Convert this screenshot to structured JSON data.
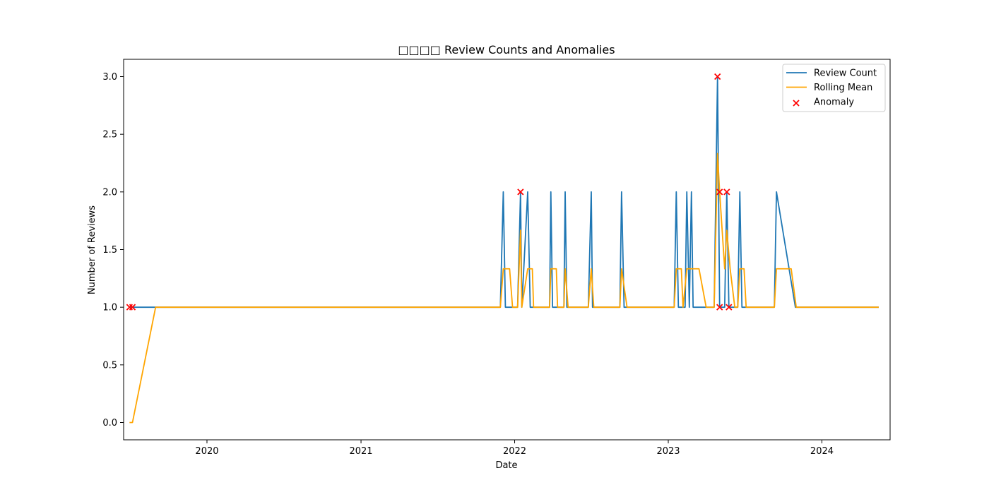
{
  "chart_data": {
    "type": "line",
    "title": "□□□□ Review Counts and Anomalies",
    "xlabel": "Date",
    "ylabel": "Number of Reviews",
    "xlim": [
      "2019-06-17",
      "2024-06-11"
    ],
    "ylim": [
      -0.15,
      3.15
    ],
    "x_ticks": [
      "2020-01-01",
      "2021-01-01",
      "2022-01-01",
      "2023-01-01",
      "2024-01-01"
    ],
    "x_tick_labels": [
      "2020",
      "2021",
      "2022",
      "2023",
      "2024"
    ],
    "y_ticks": [
      0.0,
      0.5,
      1.0,
      1.5,
      2.0,
      2.5,
      3.0
    ],
    "y_tick_labels": [
      "0.0",
      "0.5",
      "1.0",
      "1.5",
      "2.0",
      "2.5",
      "3.0"
    ],
    "grid": false,
    "legend_position": "top-right",
    "series": [
      {
        "name": "Review Count",
        "kind": "line",
        "color": "#1f77b4",
        "points": [
          [
            "2019-07-01",
            1
          ],
          [
            "2019-07-08",
            1
          ],
          [
            "2019-09-01",
            1
          ],
          [
            "2021-11-28",
            1
          ],
          [
            "2021-12-05",
            2
          ],
          [
            "2021-12-10",
            1
          ],
          [
            "2022-01-08",
            1
          ],
          [
            "2022-01-15",
            2
          ],
          [
            "2022-01-18",
            1
          ],
          [
            "2022-02-01",
            2
          ],
          [
            "2022-02-07",
            1
          ],
          [
            "2022-03-25",
            1
          ],
          [
            "2022-03-28",
            2
          ],
          [
            "2022-04-01",
            1
          ],
          [
            "2022-04-28",
            1
          ],
          [
            "2022-05-01",
            2
          ],
          [
            "2022-05-05",
            1
          ],
          [
            "2022-06-25",
            1
          ],
          [
            "2022-07-02",
            2
          ],
          [
            "2022-07-05",
            1
          ],
          [
            "2022-09-08",
            1
          ],
          [
            "2022-09-12",
            2
          ],
          [
            "2022-09-18",
            1
          ],
          [
            "2023-01-15",
            1
          ],
          [
            "2023-01-20",
            2
          ],
          [
            "2023-01-25",
            1
          ],
          [
            "2023-02-10",
            1
          ],
          [
            "2023-02-14",
            2
          ],
          [
            "2023-02-20",
            1
          ],
          [
            "2023-02-25",
            2
          ],
          [
            "2023-03-01",
            1
          ],
          [
            "2023-04-20",
            1
          ],
          [
            "2023-04-28",
            3
          ],
          [
            "2023-05-03",
            1
          ],
          [
            "2023-05-15",
            1
          ],
          [
            "2023-05-20",
            2
          ],
          [
            "2023-05-25",
            1
          ],
          [
            "2023-06-15",
            1
          ],
          [
            "2023-06-20",
            2
          ],
          [
            "2023-06-25",
            1
          ],
          [
            "2023-09-10",
            1
          ],
          [
            "2023-09-15",
            2
          ],
          [
            "2023-10-30",
            1
          ],
          [
            "2024-05-15",
            1
          ]
        ]
      },
      {
        "name": "Rolling Mean",
        "kind": "line",
        "color": "#ffa500",
        "points": [
          [
            "2019-07-01",
            0
          ],
          [
            "2019-07-08",
            0
          ],
          [
            "2019-09-01",
            1
          ],
          [
            "2021-11-28",
            1
          ],
          [
            "2021-12-05",
            1.333
          ],
          [
            "2021-12-20",
            1.333
          ],
          [
            "2021-12-27",
            1
          ],
          [
            "2022-01-08",
            1
          ],
          [
            "2022-01-15",
            1.667
          ],
          [
            "2022-01-18",
            1
          ],
          [
            "2022-02-01",
            1.333
          ],
          [
            "2022-02-12",
            1.333
          ],
          [
            "2022-02-15",
            1
          ],
          [
            "2022-03-25",
            1
          ],
          [
            "2022-03-28",
            1.333
          ],
          [
            "2022-04-10",
            1.333
          ],
          [
            "2022-04-13",
            1
          ],
          [
            "2022-04-28",
            1
          ],
          [
            "2022-05-01",
            1.333
          ],
          [
            "2022-05-08",
            1
          ],
          [
            "2022-06-25",
            1
          ],
          [
            "2022-07-02",
            1.333
          ],
          [
            "2022-07-08",
            1
          ],
          [
            "2022-09-08",
            1
          ],
          [
            "2022-09-12",
            1.333
          ],
          [
            "2022-09-25",
            1
          ],
          [
            "2023-01-15",
            1
          ],
          [
            "2023-01-20",
            1.333
          ],
          [
            "2023-02-01",
            1.333
          ],
          [
            "2023-02-05",
            1
          ],
          [
            "2023-02-14",
            1.333
          ],
          [
            "2023-03-15",
            1.333
          ],
          [
            "2023-04-01",
            1
          ],
          [
            "2023-04-20",
            1
          ],
          [
            "2023-04-28",
            2.333
          ],
          [
            "2023-05-03",
            2
          ],
          [
            "2023-05-15",
            1.333
          ],
          [
            "2023-05-20",
            1.667
          ],
          [
            "2023-05-28",
            1.333
          ],
          [
            "2023-06-08",
            1
          ],
          [
            "2023-06-15",
            1
          ],
          [
            "2023-06-20",
            1.333
          ],
          [
            "2023-06-30",
            1.333
          ],
          [
            "2023-07-05",
            1
          ],
          [
            "2023-09-10",
            1
          ],
          [
            "2023-09-15",
            1.333
          ],
          [
            "2023-10-20",
            1.333
          ],
          [
            "2023-11-01",
            1
          ],
          [
            "2024-05-15",
            1
          ]
        ]
      },
      {
        "name": "Anomaly",
        "kind": "scatter",
        "marker": "x",
        "color": "#ff0000",
        "points": [
          [
            "2019-07-01",
            1
          ],
          [
            "2019-07-08",
            1
          ],
          [
            "2022-01-15",
            2
          ],
          [
            "2023-04-28",
            3
          ],
          [
            "2023-05-03",
            1
          ],
          [
            "2023-05-03",
            2
          ],
          [
            "2023-05-20",
            2
          ],
          [
            "2023-05-25",
            1
          ]
        ]
      }
    ]
  }
}
